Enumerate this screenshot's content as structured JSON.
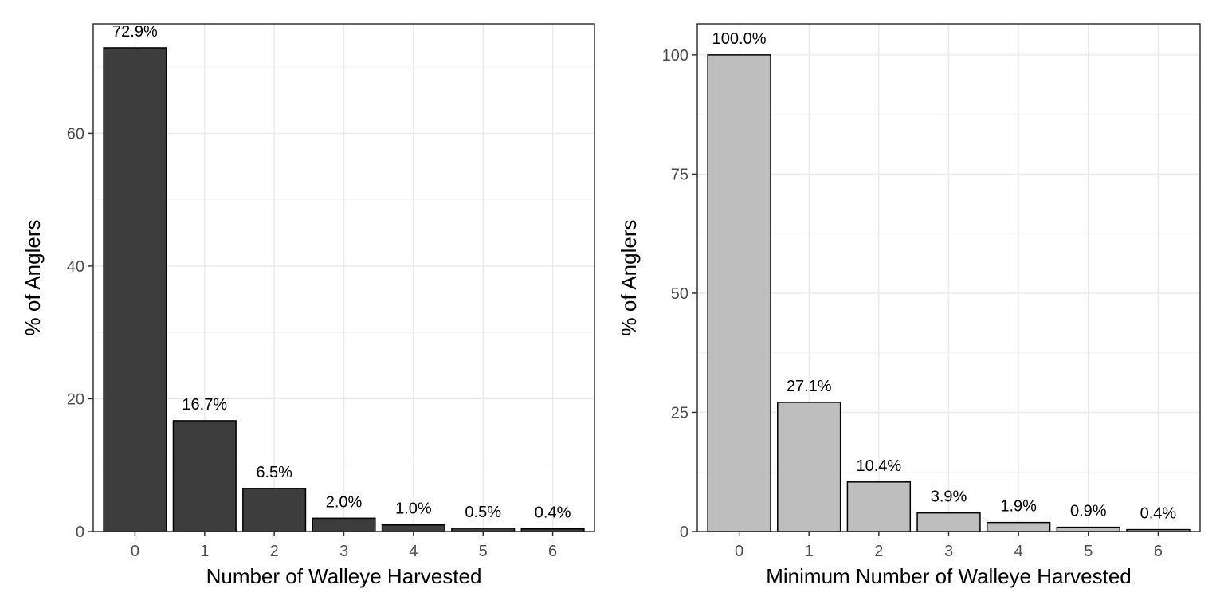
{
  "chart_data": [
    {
      "type": "bar",
      "categories": [
        "0",
        "1",
        "2",
        "3",
        "4",
        "5",
        "6"
      ],
      "values": [
        72.9,
        16.7,
        6.5,
        2.0,
        1.0,
        0.5,
        0.4
      ],
      "data_labels": [
        "72.9%",
        "16.7%",
        "6.5%",
        "2.0%",
        "1.0%",
        "0.5%",
        "0.4%"
      ],
      "title": "",
      "xlabel": "Number of Walleye Harvested",
      "ylabel": "% of Anglers",
      "ylim": [
        0,
        76.5
      ],
      "yticks": [
        0,
        20,
        40,
        60
      ],
      "ytick_labels": [
        "0",
        "20",
        "40",
        "60"
      ],
      "grid": true,
      "bar_color": "#3d3d3d"
    },
    {
      "type": "bar",
      "categories": [
        "0",
        "1",
        "2",
        "3",
        "4",
        "5",
        "6"
      ],
      "values": [
        100.0,
        27.1,
        10.4,
        3.9,
        1.9,
        0.9,
        0.4
      ],
      "data_labels": [
        "100.0%",
        "27.1%",
        "10.4%",
        "3.9%",
        "1.9%",
        "0.9%",
        "0.4%"
      ],
      "title": "",
      "xlabel": "Minimum Number of Walleye Harvested",
      "ylabel": "% of Anglers",
      "ylim": [
        0,
        106.5
      ],
      "yticks": [
        0,
        25,
        50,
        75,
        100
      ],
      "ytick_labels": [
        "0",
        "25",
        "50",
        "75",
        "100"
      ],
      "grid": true,
      "bar_color": "#bebebe"
    }
  ],
  "colors": {
    "bar_outline": "#000000",
    "panel_border": "#333333",
    "grid_major": "#ebebeb",
    "grid_minor": "#f4f4f4",
    "tick_text": "#4d4d4d"
  }
}
